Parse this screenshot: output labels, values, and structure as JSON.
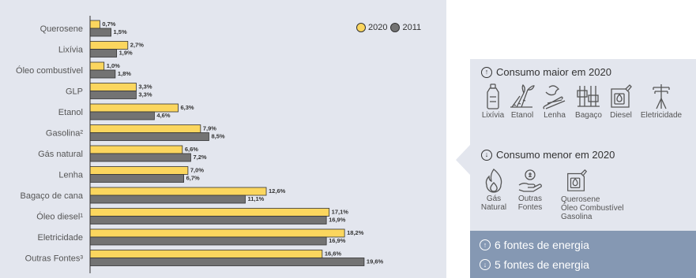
{
  "chart_data": {
    "type": "bar",
    "orientation": "horizontal",
    "categories": [
      "Querosene",
      "Lixívia",
      "Óleo combustível",
      "GLP",
      "Etanol",
      "Gasolina²",
      "Gás natural",
      "Lenha",
      "Bagaço de cana",
      "Óleo diesel¹",
      "Eletricidade",
      "Outras Fontes³"
    ],
    "series": [
      {
        "name": "2020",
        "color": "#fbd65e",
        "values": [
          0.7,
          2.7,
          1.0,
          3.3,
          6.3,
          7.9,
          6.6,
          7.0,
          12.6,
          17.1,
          18.2,
          16.6
        ],
        "labels": [
          "0,7%",
          "2,7%",
          "1,0%",
          "3,3%",
          "6,3%",
          "7,9%",
          "6,6%",
          "7,0%",
          "12,6%",
          "17,1%",
          "18,2%",
          "16,6%"
        ]
      },
      {
        "name": "2011",
        "color": "#737373",
        "values": [
          1.5,
          1.9,
          1.8,
          3.3,
          4.6,
          8.5,
          7.2,
          6.7,
          11.1,
          16.9,
          16.9,
          19.6
        ],
        "labels": [
          "1,5%",
          "1,9%",
          "1,8%",
          "3,3%",
          "4,6%",
          "8,5%",
          "7,2%",
          "6,7%",
          "11,1%",
          "16,9%",
          "16,9%",
          "19,6%"
        ]
      }
    ],
    "xlim": [
      0,
      20
    ],
    "legend": "top-right",
    "grid": false
  },
  "info": {
    "up_glyph": "↑",
    "down_glyph": "↓",
    "higher_title": "Consumo maior em 2020",
    "higher_items": [
      {
        "label": "Lixívia",
        "icon": "bottle-icon"
      },
      {
        "label": "Etanol",
        "icon": "sugarcane-icon"
      },
      {
        "label": "Lenha",
        "icon": "firewood-icon"
      },
      {
        "label": "Bagaço",
        "icon": "bagasse-icon"
      },
      {
        "label": "Diesel",
        "icon": "fuel-can-icon"
      },
      {
        "label": "Eletricidade",
        "icon": "power-pole-icon"
      }
    ],
    "lower_title": "Consumo menor em 2020",
    "lower_items": [
      {
        "label1": "Gás",
        "label2": "Natural",
        "icon": "flame-icon"
      },
      {
        "label1": "Outras",
        "label2": "Fontes",
        "icon": "hand-coin-icon"
      },
      {
        "label1": "Querosene",
        "label2": "Óleo Combustível",
        "label3": "Gasolina",
        "icon": "fuel-can-icon"
      }
    ],
    "footer_up": "6 fontes de energia",
    "footer_down": "5 fontes de energia"
  }
}
